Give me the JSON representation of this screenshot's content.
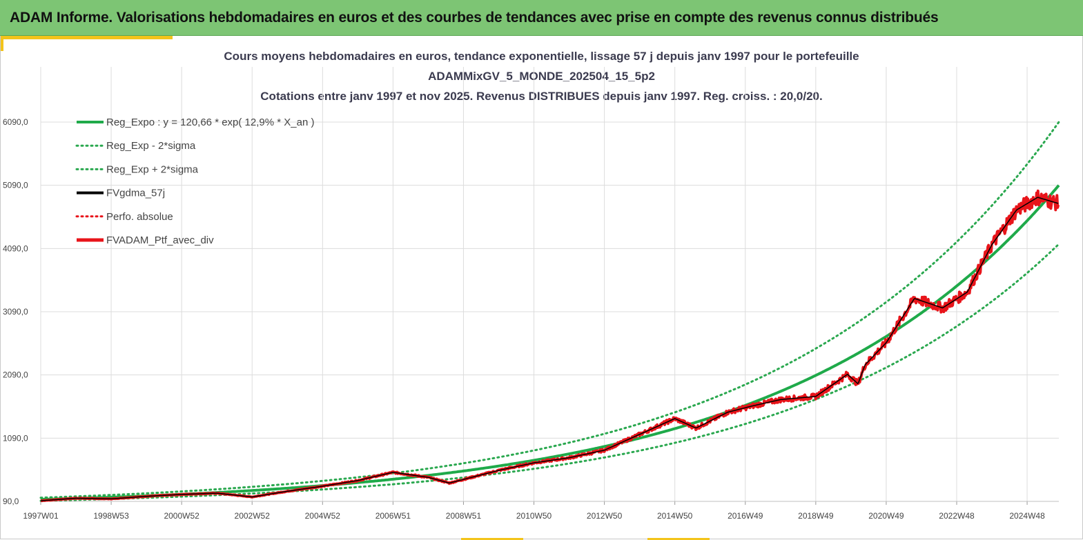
{
  "header": {
    "title": "ADAM Informe. Valorisations hebdomadaires en euros et des courbes de tendances avec prise en compte des revenus connus distribués"
  },
  "colors": {
    "banner": "#7dc574",
    "accent": "#f3c41b",
    "trend": "#1faa4a",
    "band": "#2aa84f",
    "smooth": "#000000",
    "portfolio": "#e8141a"
  },
  "chart_data": {
    "type": "line",
    "title_lines": [
      "Cours moyens hebdomadaires  en euros, tendance exponentielle, lissage 57 j depuis janv 1997 pour le portefeuille",
      "ADAMMixGV_5_MONDE_202504_15_5p2",
      "Cotations  entre janv 1997 et nov  2025. Revenus DISTRIBUES depuis janv 1997. Reg. croiss. : 20,0/20."
    ],
    "x_tick_labels": [
      "1997W01",
      "1998W53",
      "2000W52",
      "2002W52",
      "2004W52",
      "2006W51",
      "2008W51",
      "2010W50",
      "2012W50",
      "2014W50",
      "2016W49",
      "2018W49",
      "2020W49",
      "2022W48",
      "2024W48"
    ],
    "x_tick_years": [
      1997,
      1999,
      2001,
      2003,
      2005,
      2007,
      2009,
      2011,
      2013,
      2015,
      2017,
      2019,
      2021,
      2023,
      2025
    ],
    "x_range_years": [
      1997,
      2025.9
    ],
    "y_tick_labels": [
      "90,0",
      "1090,0",
      "2090,0",
      "3090,0",
      "4090,0",
      "5090,0",
      "6090,0"
    ],
    "y_ticks": [
      90,
      1090,
      2090,
      3090,
      4090,
      5090,
      6090
    ],
    "ylim": [
      90,
      6090
    ],
    "legend": [
      {
        "label": "Reg_Expo : y = 120,66 * exp( 12,9% *  X_an )",
        "style": "solid-green"
      },
      {
        "label": "Reg_Exp - 2*sigma",
        "style": "dotted-green"
      },
      {
        "label": "Reg_Exp + 2*sigma",
        "style": "dotted-green"
      },
      {
        "label": "FVgdma_57j",
        "style": "solid-black"
      },
      {
        "label": "Perfo. absolue",
        "style": "dotted-red"
      },
      {
        "label": "FVADAM_Ptf_avec_div",
        "style": "solid-red"
      }
    ],
    "series": [
      {
        "name": "Reg_Expo",
        "formula": "120.66*exp(0.129*t)",
        "points": [
          [
            1997,
            121
          ],
          [
            2001,
            203
          ],
          [
            2005,
            340
          ],
          [
            2009,
            570
          ],
          [
            2013,
            955
          ],
          [
            2017,
            1600
          ],
          [
            2021,
            2682
          ],
          [
            2023,
            3472
          ],
          [
            2025.9,
            5090
          ]
        ]
      },
      {
        "name": "Reg_Exp - 2*sigma",
        "points": [
          [
            1997,
            99
          ],
          [
            2001,
            166
          ],
          [
            2005,
            278
          ],
          [
            2009,
            466
          ],
          [
            2013,
            781
          ],
          [
            2017,
            1309
          ],
          [
            2021,
            2194
          ],
          [
            2023,
            2840
          ],
          [
            2025.9,
            4160
          ]
        ]
      },
      {
        "name": "Reg_Exp + 2*sigma",
        "points": [
          [
            1997,
            148
          ],
          [
            2001,
            248
          ],
          [
            2005,
            415
          ],
          [
            2009,
            696
          ],
          [
            2013,
            1167
          ],
          [
            2017,
            1955
          ],
          [
            2021,
            3277
          ],
          [
            2023,
            4242
          ],
          [
            2025.9,
            6090
          ]
        ]
      },
      {
        "name": "FVADAM_Ptf_avec_div",
        "points": [
          [
            1997,
            100
          ],
          [
            1998,
            140
          ],
          [
            1999,
            130
          ],
          [
            2000,
            170
          ],
          [
            2001,
            200
          ],
          [
            2002,
            220
          ],
          [
            2003,
            160
          ],
          [
            2004,
            250
          ],
          [
            2005,
            330
          ],
          [
            2006,
            420
          ],
          [
            2007,
            550
          ],
          [
            2008,
            470
          ],
          [
            2008.6,
            380
          ],
          [
            2009.3,
            480
          ],
          [
            2010,
            580
          ],
          [
            2011,
            700
          ],
          [
            2012,
            780
          ],
          [
            2013,
            900
          ],
          [
            2014,
            1150
          ],
          [
            2015,
            1400
          ],
          [
            2015.6,
            1250
          ],
          [
            2016.5,
            1500
          ],
          [
            2017.2,
            1600
          ],
          [
            2018,
            1700
          ],
          [
            2019,
            1750
          ],
          [
            2019.9,
            2100
          ],
          [
            2020.2,
            1950
          ],
          [
            2020.4,
            2250
          ],
          [
            2021,
            2600
          ],
          [
            2021.8,
            3300
          ],
          [
            2022.6,
            3150
          ],
          [
            2023.3,
            3400
          ],
          [
            2024,
            4150
          ],
          [
            2024.7,
            4700
          ],
          [
            2025.3,
            4900
          ],
          [
            2025.9,
            4800
          ]
        ]
      }
    ]
  }
}
